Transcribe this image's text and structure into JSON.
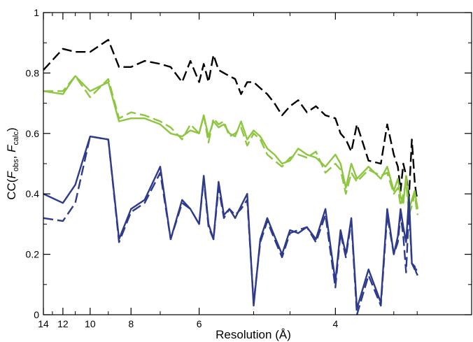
{
  "chart_data": {
    "type": "line",
    "xlabel": "Resolution (Å)",
    "ylabel": {
      "prefix": "CC(",
      "f1": "F",
      "sub1": "obs",
      "sep": ", ",
      "f2": "F",
      "sub2": "calc",
      "suffix": ")"
    },
    "xlim": [
      0.0714,
      0.3333
    ],
    "x_axis_scale": "reciprocal",
    "ylim": [
      0,
      1
    ],
    "x_ticks": [
      {
        "res": 14,
        "label": "14"
      },
      {
        "res": 12,
        "label": "12"
      },
      {
        "res": 10,
        "label": "10"
      },
      {
        "res": 8,
        "label": "8"
      },
      {
        "res": 6,
        "label": "6"
      },
      {
        "res": 4,
        "label": "4"
      }
    ],
    "x_minor_ticks": [
      13,
      11,
      9,
      7,
      5,
      4.5,
      3.5,
      3.333
    ],
    "y_ticks": [
      {
        "value": 0,
        "label": "0"
      },
      {
        "value": 0.2,
        "label": "0.2"
      },
      {
        "value": 0.4,
        "label": "0.4"
      },
      {
        "value": 0.6,
        "label": "0.6"
      },
      {
        "value": 0.8,
        "label": "0.8"
      },
      {
        "value": 1,
        "label": "1"
      }
    ],
    "y_minor_ticks": [
      0.1,
      0.3,
      0.5,
      0.7,
      0.9
    ],
    "grid": false,
    "series": [
      {
        "style": "dashed",
        "color": "#000000",
        "x": [
          14.0,
          12.0,
          11.0,
          10.0,
          9.0,
          8.5,
          8.0,
          7.5,
          7.0,
          6.7,
          6.4,
          6.2,
          6.0,
          5.9,
          5.8,
          5.7,
          5.6,
          5.5,
          5.4,
          5.3,
          5.2,
          5.1,
          5.0,
          4.9,
          4.8,
          4.7,
          4.6,
          4.5,
          4.4,
          4.3,
          4.2,
          4.1,
          4.0,
          3.95,
          3.9,
          3.85,
          3.8,
          3.7,
          3.6,
          3.55,
          3.5,
          3.47,
          3.45,
          3.43,
          3.41,
          3.39,
          3.37,
          3.35,
          3.34,
          3.33
        ],
        "values": [
          0.81,
          0.88,
          0.87,
          0.87,
          0.91,
          0.82,
          0.82,
          0.84,
          0.83,
          0.82,
          0.77,
          0.84,
          0.77,
          0.83,
          0.77,
          0.86,
          0.81,
          0.8,
          0.79,
          0.78,
          0.73,
          0.77,
          0.77,
          0.75,
          0.73,
          0.7,
          0.66,
          0.69,
          0.71,
          0.67,
          0.69,
          0.66,
          0.65,
          0.6,
          0.58,
          0.54,
          0.63,
          0.51,
          0.5,
          0.63,
          0.53,
          0.49,
          0.41,
          0.5,
          0.46,
          0.39,
          0.58,
          0.44,
          0.4,
          0.38
        ]
      },
      {
        "style": "solid",
        "color": "#8dc63f",
        "x": [
          14.0,
          12.0,
          11.0,
          10.0,
          9.0,
          8.5,
          8.0,
          7.5,
          7.0,
          6.7,
          6.4,
          6.2,
          6.0,
          5.9,
          5.8,
          5.7,
          5.6,
          5.5,
          5.4,
          5.3,
          5.2,
          5.1,
          5.0,
          4.9,
          4.8,
          4.7,
          4.6,
          4.5,
          4.4,
          4.3,
          4.2,
          4.1,
          4.0,
          3.95,
          3.9,
          3.85,
          3.8,
          3.7,
          3.6,
          3.55,
          3.5,
          3.47,
          3.45,
          3.43,
          3.41,
          3.39,
          3.37,
          3.35,
          3.34,
          3.33
        ],
        "values": [
          0.74,
          0.73,
          0.79,
          0.74,
          0.77,
          0.64,
          0.65,
          0.65,
          0.63,
          0.6,
          0.59,
          0.61,
          0.6,
          0.66,
          0.59,
          0.64,
          0.62,
          0.63,
          0.6,
          0.59,
          0.64,
          0.58,
          0.61,
          0.59,
          0.55,
          0.53,
          0.5,
          0.51,
          0.55,
          0.53,
          0.52,
          0.49,
          0.53,
          0.5,
          0.42,
          0.5,
          0.45,
          0.49,
          0.45,
          0.49,
          0.41,
          0.45,
          0.39,
          0.37,
          0.46,
          0.35,
          0.38,
          0.41,
          0.38,
          0.35
        ]
      },
      {
        "style": "dashed",
        "color": "#8dc63f",
        "x": [
          14.0,
          12.0,
          11.0,
          10.0,
          9.0,
          8.5,
          8.0,
          7.5,
          7.0,
          6.7,
          6.4,
          6.2,
          6.0,
          5.9,
          5.8,
          5.7,
          5.6,
          5.5,
          5.4,
          5.3,
          5.2,
          5.1,
          5.0,
          4.9,
          4.8,
          4.7,
          4.6,
          4.5,
          4.4,
          4.3,
          4.2,
          4.1,
          4.0,
          3.95,
          3.9,
          3.85,
          3.8,
          3.7,
          3.6,
          3.55,
          3.5,
          3.47,
          3.45,
          3.43,
          3.41,
          3.39,
          3.37,
          3.35,
          3.34,
          3.33
        ],
        "values": [
          0.74,
          0.74,
          0.79,
          0.72,
          0.78,
          0.65,
          0.67,
          0.66,
          0.64,
          0.62,
          0.58,
          0.63,
          0.6,
          0.66,
          0.57,
          0.65,
          0.63,
          0.64,
          0.59,
          0.6,
          0.62,
          0.56,
          0.6,
          0.58,
          0.53,
          0.51,
          0.49,
          0.52,
          0.53,
          0.52,
          0.54,
          0.47,
          0.5,
          0.48,
          0.4,
          0.47,
          0.44,
          0.48,
          0.46,
          0.47,
          0.4,
          0.42,
          0.36,
          0.4,
          0.44,
          0.33,
          0.36,
          0.4,
          0.36,
          0.33
        ]
      },
      {
        "style": "solid",
        "color": "#2e3a8c",
        "x": [
          14.0,
          12.0,
          11.0,
          10.0,
          9.0,
          8.5,
          8.0,
          7.5,
          7.0,
          6.7,
          6.4,
          6.2,
          6.0,
          5.9,
          5.8,
          5.7,
          5.6,
          5.5,
          5.4,
          5.3,
          5.2,
          5.1,
          5.0,
          4.9,
          4.8,
          4.7,
          4.6,
          4.5,
          4.4,
          4.3,
          4.2,
          4.1,
          4.0,
          3.95,
          3.9,
          3.85,
          3.8,
          3.7,
          3.6,
          3.55,
          3.5,
          3.47,
          3.45,
          3.43,
          3.41,
          3.39,
          3.37,
          3.35,
          3.34,
          3.33
        ],
        "values": [
          0.4,
          0.37,
          0.43,
          0.59,
          0.58,
          0.25,
          0.35,
          0.38,
          0.49,
          0.25,
          0.38,
          0.35,
          0.3,
          0.46,
          0.3,
          0.25,
          0.44,
          0.33,
          0.35,
          0.32,
          0.36,
          0.4,
          0.03,
          0.25,
          0.32,
          0.26,
          0.2,
          0.28,
          0.27,
          0.29,
          0.25,
          0.35,
          0.11,
          0.28,
          0.2,
          0.32,
          0.02,
          0.15,
          0.04,
          0.35,
          0.2,
          0.26,
          0.35,
          0.29,
          0.24,
          0.39,
          0.17,
          0.16,
          0.14,
          0.13
        ]
      },
      {
        "style": "dashed",
        "color": "#2e3a8c",
        "x": [
          14.0,
          12.0,
          11.0,
          10.0,
          9.0,
          8.5,
          8.0,
          7.5,
          7.0,
          6.7,
          6.4,
          6.2,
          6.0,
          5.9,
          5.8,
          5.7,
          5.6,
          5.5,
          5.4,
          5.3,
          5.2,
          5.1,
          5.0,
          4.9,
          4.8,
          4.7,
          4.6,
          4.5,
          4.4,
          4.3,
          4.2,
          4.1,
          4.0,
          3.95,
          3.9,
          3.85,
          3.8,
          3.7,
          3.6,
          3.55,
          3.5,
          3.47,
          3.45,
          3.43,
          3.41,
          3.39,
          3.37,
          3.35,
          3.34,
          3.33
        ],
        "values": [
          0.32,
          0.31,
          0.37,
          0.59,
          0.58,
          0.24,
          0.34,
          0.37,
          0.47,
          0.25,
          0.37,
          0.35,
          0.3,
          0.45,
          0.29,
          0.25,
          0.42,
          0.32,
          0.35,
          0.33,
          0.35,
          0.38,
          0.04,
          0.24,
          0.31,
          0.25,
          0.19,
          0.27,
          0.28,
          0.29,
          0.24,
          0.33,
          0.09,
          0.27,
          0.19,
          0.31,
          0.0,
          0.13,
          0.03,
          0.33,
          0.2,
          0.24,
          0.33,
          0.26,
          0.14,
          0.35,
          0.17,
          0.15,
          0.15,
          0.14
        ]
      }
    ]
  }
}
